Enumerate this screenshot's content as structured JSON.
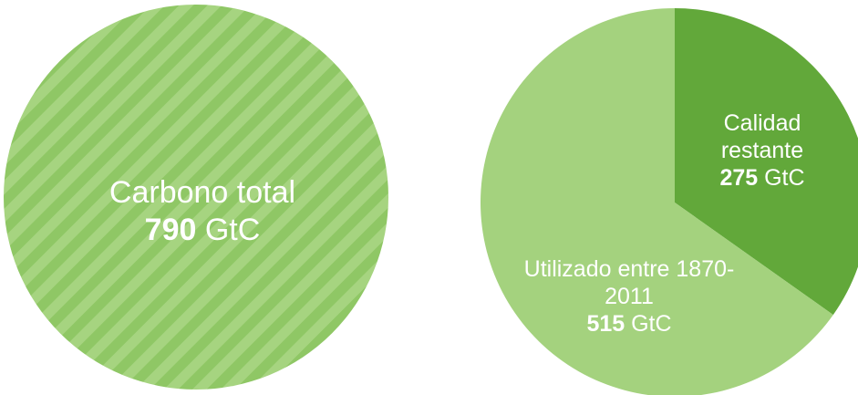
{
  "chart_data": [
    {
      "type": "pie",
      "categories": [
        "Carbono total"
      ],
      "values": [
        790
      ],
      "unit": "GtC",
      "colors": [
        "#9fd07a"
      ],
      "hatch": true
    },
    {
      "type": "pie",
      "categories": [
        "Calidad restante",
        "Utilizado entre 1870-2011"
      ],
      "values": [
        275,
        515
      ],
      "unit": "GtC",
      "colors": [
        "#62a83a",
        "#a4d27e"
      ],
      "hatch": false
    }
  ]
}
